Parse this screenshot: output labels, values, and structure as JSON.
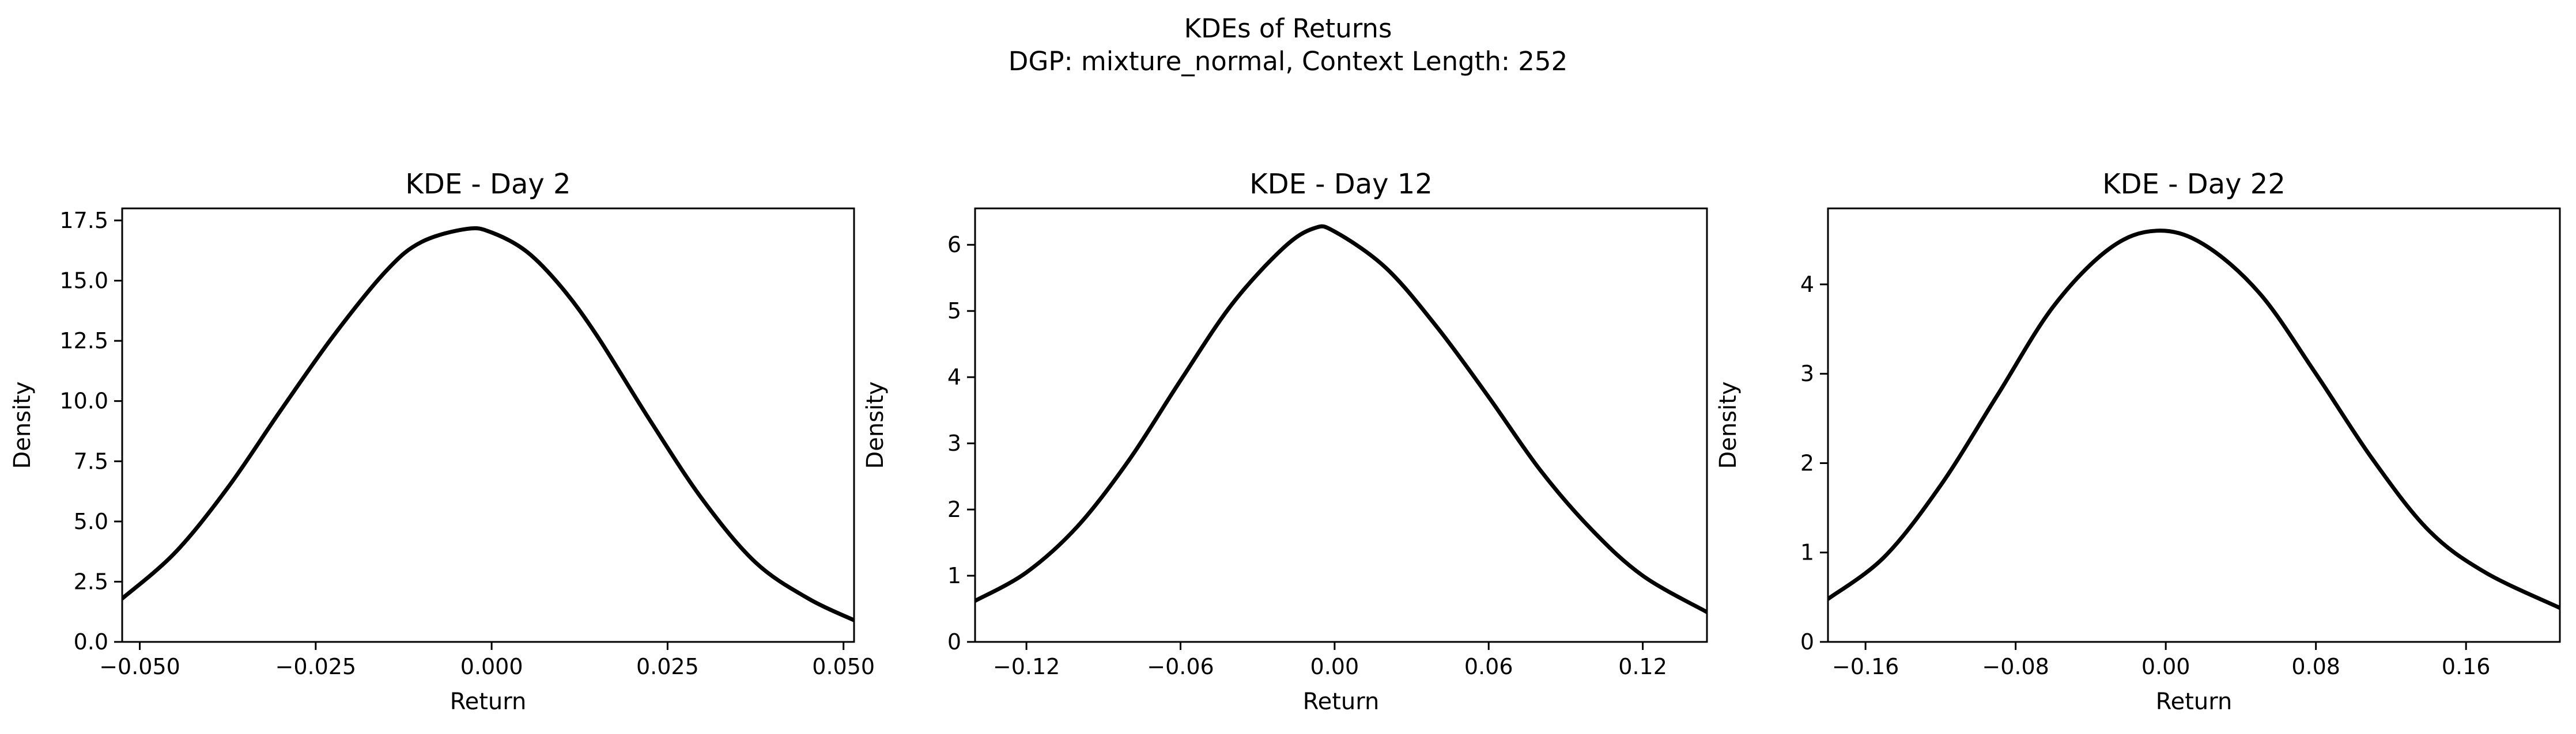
{
  "figure": {
    "title_line1": "KDEs of Returns",
    "title_line2": "DGP: mixture_normal, Context Length: 252"
  },
  "chart_data": [
    {
      "type": "line",
      "title": "KDE - Day 2",
      "xlabel": "Return",
      "ylabel": "Density",
      "xlim": [
        -0.0525,
        0.0515
      ],
      "ylim": [
        0,
        18.0
      ],
      "xticks": [
        -0.05,
        -0.025,
        0.0,
        0.025,
        0.05
      ],
      "xtick_labels": [
        "−0.050",
        "−0.025",
        "0.000",
        "0.025",
        "0.050"
      ],
      "yticks": [
        0,
        2.5,
        5.0,
        7.5,
        10.0,
        12.5,
        15.0,
        17.5
      ],
      "ytick_labels": [
        "0.0",
        "2.5",
        "5.0",
        "7.5",
        "10.0",
        "12.5",
        "15.0",
        "17.5"
      ],
      "grid": false,
      "series": [
        {
          "x": [
            -0.0525,
            -0.045,
            -0.0375,
            -0.03,
            -0.0225,
            -0.015,
            -0.01,
            -0.0035,
            0.0,
            0.005,
            0.01,
            0.015,
            0.0225,
            0.03,
            0.0375,
            0.045,
            0.0515
          ],
          "y": [
            1.8,
            3.7,
            6.4,
            9.6,
            12.7,
            15.4,
            16.6,
            17.15,
            17.0,
            16.2,
            14.7,
            12.7,
            9.2,
            5.9,
            3.3,
            1.8,
            0.9
          ]
        }
      ]
    },
    {
      "type": "line",
      "title": "KDE - Day 12",
      "xlabel": "Return",
      "ylabel": "Density",
      "xlim": [
        -0.14,
        0.145
      ],
      "ylim": [
        0,
        6.55
      ],
      "xticks": [
        -0.12,
        -0.06,
        0.0,
        0.06,
        0.12
      ],
      "xtick_labels": [
        "−0.12",
        "−0.06",
        "0.00",
        "0.06",
        "0.12"
      ],
      "yticks": [
        0,
        1,
        2,
        3,
        4,
        5,
        6
      ],
      "ytick_labels": [
        "0",
        "1",
        "2",
        "3",
        "4",
        "5",
        "6"
      ],
      "grid": false,
      "series": [
        {
          "x": [
            -0.14,
            -0.12,
            -0.1,
            -0.08,
            -0.06,
            -0.04,
            -0.02,
            -0.008,
            0.0,
            0.02,
            0.04,
            0.06,
            0.08,
            0.1,
            0.12,
            0.145
          ],
          "y": [
            0.62,
            1.05,
            1.75,
            2.75,
            3.95,
            5.1,
            5.95,
            6.25,
            6.2,
            5.65,
            4.75,
            3.7,
            2.6,
            1.7,
            1.0,
            0.45
          ]
        }
      ]
    },
    {
      "type": "line",
      "title": "KDE - Day 22",
      "xlabel": "Return",
      "ylabel": "Density",
      "xlim": [
        -0.18,
        0.21
      ],
      "ylim": [
        0,
        4.85
      ],
      "xticks": [
        -0.16,
        -0.08,
        0.0,
        0.08,
        0.16
      ],
      "xtick_labels": [
        "−0.16",
        "−0.08",
        "0.00",
        "0.08",
        "0.16"
      ],
      "yticks": [
        0,
        1,
        2,
        3,
        4
      ],
      "ytick_labels": [
        "0",
        "1",
        "2",
        "3",
        "4"
      ],
      "grid": false,
      "series": [
        {
          "x": [
            -0.18,
            -0.15,
            -0.12,
            -0.09,
            -0.06,
            -0.03,
            -0.005,
            0.02,
            0.05,
            0.08,
            0.11,
            0.14,
            0.17,
            0.21
          ],
          "y": [
            0.48,
            0.95,
            1.75,
            2.75,
            3.75,
            4.4,
            4.6,
            4.45,
            3.9,
            3.0,
            2.05,
            1.25,
            0.78,
            0.38
          ]
        }
      ]
    }
  ]
}
